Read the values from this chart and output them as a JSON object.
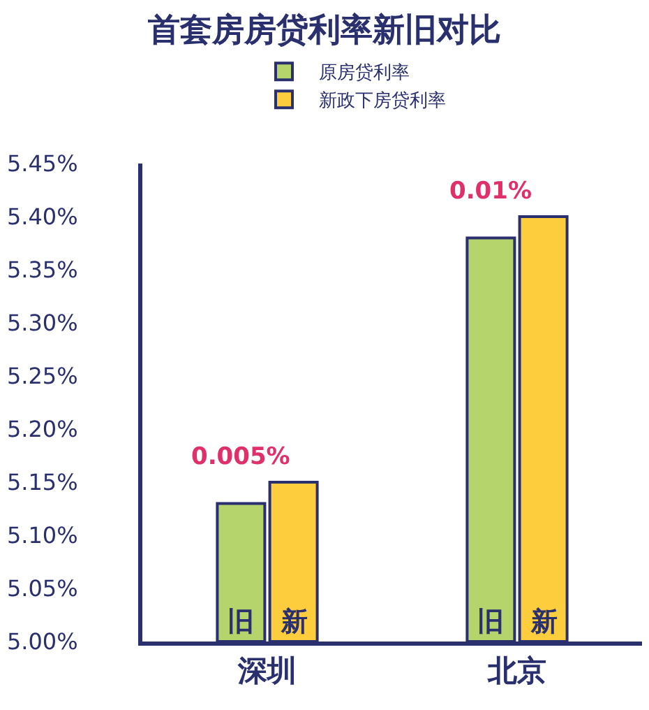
{
  "chart_data": {
    "type": "bar",
    "title": "首套房房贷利率新旧对比",
    "categories": [
      "深圳",
      "北京"
    ],
    "series": [
      {
        "name": "原房贷利率",
        "color": "#b5d46c",
        "values": [
          5.13,
          5.38
        ],
        "value_labels": [
          "旧",
          "旧"
        ]
      },
      {
        "name": "新政下房贷利率",
        "color": "#fdcd3d",
        "values": [
          5.15,
          5.4
        ],
        "value_labels": [
          "新",
          "新"
        ]
      }
    ],
    "annotations": [
      {
        "text": "0.005%",
        "x": "深圳",
        "y": 5.15
      },
      {
        "text": "0.01%",
        "x": "北京",
        "y": 5.4
      }
    ],
    "ylim": [
      5.0,
      5.45
    ],
    "yticks": [
      {
        "value": 5.0,
        "label": "5.00%"
      },
      {
        "value": 5.05,
        "label": "5.05%"
      },
      {
        "value": 5.1,
        "label": "5.10%"
      },
      {
        "value": 5.15,
        "label": "5.15%"
      },
      {
        "value": 5.2,
        "label": "5.20%"
      },
      {
        "value": 5.25,
        "label": "5.25%"
      },
      {
        "value": 5.3,
        "label": "5.30%"
      },
      {
        "value": 5.35,
        "label": "5.35%"
      },
      {
        "value": 5.4,
        "label": "5.40%"
      },
      {
        "value": 5.45,
        "label": "5.45%"
      }
    ],
    "legend": "top"
  }
}
